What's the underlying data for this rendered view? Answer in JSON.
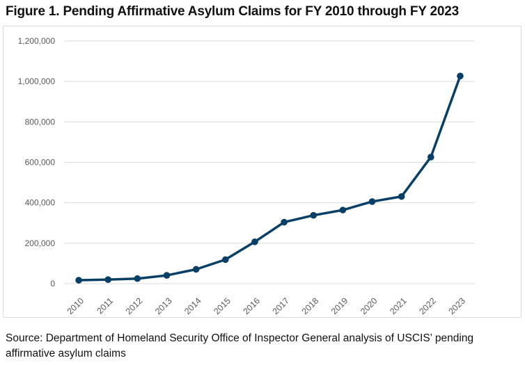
{
  "title": "Figure 1. Pending Affirmative Asylum Claims for FY 2010 through FY 2023",
  "source": "Source: Department of Homeland Security Office of Inspector General analysis of USCIS’ pending affirmative asylum claims",
  "chart_data": {
    "type": "line",
    "title": "Figure 1. Pending Affirmative Asylum Claims for FY 2010 through FY 2023",
    "xlabel": "",
    "ylabel": "",
    "categories": [
      "2010",
      "2011",
      "2012",
      "2013",
      "2014",
      "2015",
      "2016",
      "2017",
      "2018",
      "2019",
      "2020",
      "2021",
      "2022",
      "2023"
    ],
    "values": [
      17000,
      20000,
      25000,
      41000,
      71000,
      119000,
      207000,
      304000,
      338000,
      364000,
      406000,
      431000,
      626000,
      1027000
    ],
    "ylim": [
      0,
      1200000
    ],
    "yticks": [
      0,
      200000,
      400000,
      600000,
      800000,
      1000000,
      1200000
    ],
    "ytick_labels": [
      "0",
      "200,000",
      "400,000",
      "600,000",
      "800,000",
      "1,000,000",
      "1,200,000"
    ],
    "grid": true,
    "legend": "none",
    "line_color": "#073f66"
  }
}
